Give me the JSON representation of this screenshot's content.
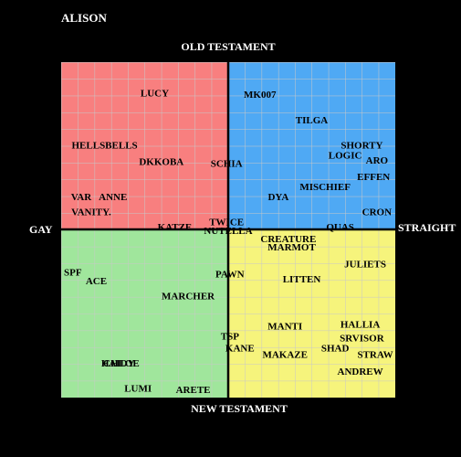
{
  "chart_data": {
    "type": "scatter",
    "title": "ALISON",
    "top_label": "OLD TESTAMENT",
    "bottom_label": "NEW TESTAMENT",
    "left_label": "GAY",
    "right_label": "STRAIGHT",
    "xlim": [
      -10,
      10
    ],
    "ylim": [
      -10,
      10
    ],
    "quadrant_colors": {
      "top_left": "#f87f7f",
      "top_right": "#4fa9f4",
      "bottom_left": "#a0e69c",
      "bottom_right": "#f6f47c"
    },
    "points": [
      {
        "label": "LUCY",
        "x": -4.4,
        "y": 8.1
      },
      {
        "label": "MK007",
        "x": 1.9,
        "y": 8.0
      },
      {
        "label": "TILGA",
        "x": 5.0,
        "y": 6.5
      },
      {
        "label": "HELLSBELLS",
        "x": -7.4,
        "y": 5.0
      },
      {
        "label": "SHORTY",
        "x": 8.0,
        "y": 5.0
      },
      {
        "label": "LOGIC",
        "x": 7.0,
        "y": 4.4
      },
      {
        "label": "ARO",
        "x": 8.9,
        "y": 4.1
      },
      {
        "label": "DKKOBA",
        "x": -4.0,
        "y": 4.0
      },
      {
        "label": "SCHIA",
        "x": -0.1,
        "y": 3.9
      },
      {
        "label": "EFFEN",
        "x": 8.7,
        "y": 3.1
      },
      {
        "label": "MISCHIEF",
        "x": 5.8,
        "y": 2.5
      },
      {
        "label": "VAR",
        "x": -8.8,
        "y": 1.9
      },
      {
        "label": "ANNE",
        "x": -6.9,
        "y": 1.9
      },
      {
        "label": "DYA",
        "x": 3.0,
        "y": 1.9
      },
      {
        "label": "VANITY.",
        "x": -8.2,
        "y": 1.0
      },
      {
        "label": "CRON",
        "x": 8.9,
        "y": 1.0
      },
      {
        "label": "TWICE",
        "x": -0.1,
        "y": 0.4
      },
      {
        "label": "KATZE",
        "x": -3.2,
        "y": 0.1
      },
      {
        "label": "NUTELLA",
        "x": 0.0,
        "y": -0.1
      },
      {
        "label": "QUAS",
        "x": 6.7,
        "y": 0.1
      },
      {
        "label": "CREATURE",
        "x": 3.6,
        "y": -0.6
      },
      {
        "label": "MARMOT",
        "x": 3.8,
        "y": -1.1
      },
      {
        "label": "JULIETS",
        "x": 8.2,
        "y": -2.1
      },
      {
        "label": "SPF",
        "x": -9.3,
        "y": -2.6
      },
      {
        "label": "ACE",
        "x": -7.9,
        "y": -3.1
      },
      {
        "label": "PAWN",
        "x": 0.1,
        "y": -2.7
      },
      {
        "label": "LITTEN",
        "x": 4.4,
        "y": -3.0
      },
      {
        "label": "MARCHER",
        "x": -2.4,
        "y": -4.0
      },
      {
        "label": "MANTI",
        "x": 3.4,
        "y": -5.8
      },
      {
        "label": "HALLIA",
        "x": 7.9,
        "y": -5.7
      },
      {
        "label": "TSP",
        "x": 0.1,
        "y": -6.4
      },
      {
        "label": "SRVISOR",
        "x": 8.0,
        "y": -6.5
      },
      {
        "label": "KANE",
        "x": 0.7,
        "y": -7.1
      },
      {
        "label": "SHAD",
        "x": 6.4,
        "y": -7.1
      },
      {
        "label": "STRAW",
        "x": 8.8,
        "y": -7.5
      },
      {
        "label": "MAKAZE",
        "x": 3.4,
        "y": -7.5
      },
      {
        "label": "CHLOE",
        "x": -6.4,
        "y": -8.0
      },
      {
        "label": "HAIDY",
        "x": -6.6,
        "y": -8.0
      },
      {
        "label": "ANDREW",
        "x": 7.9,
        "y": -8.5
      },
      {
        "label": "LUMI",
        "x": -5.4,
        "y": -9.5
      },
      {
        "label": "ARETE",
        "x": -2.1,
        "y": -9.6
      }
    ]
  }
}
